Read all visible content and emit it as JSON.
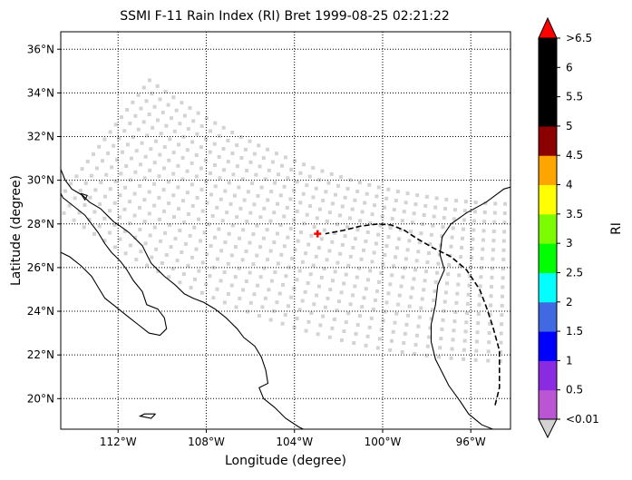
{
  "chart_data": {
    "type": "map-scatter",
    "title": "SSMI F-11 Rain Index (RI) Bret 1999-08-25 02:21:22",
    "xlabel": "Longitude (degree)",
    "ylabel": "Latitude (degree)",
    "xlim": [
      -114.6,
      -94.2
    ],
    "ylim": [
      18.6,
      36.8
    ],
    "xticks": [
      {
        "value": -112,
        "label": "112°W"
      },
      {
        "value": -108,
        "label": "108°W"
      },
      {
        "value": -104,
        "label": "104°W"
      },
      {
        "value": -100,
        "label": "100°W"
      },
      {
        "value": -96,
        "label": "96°W"
      }
    ],
    "yticks": [
      {
        "value": 20,
        "label": "20°N"
      },
      {
        "value": 22,
        "label": "22°N"
      },
      {
        "value": 24,
        "label": "24°N"
      },
      {
        "value": 26,
        "label": "26°N"
      },
      {
        "value": 28,
        "label": "28°N"
      },
      {
        "value": 30,
        "label": "30°N"
      },
      {
        "value": 32,
        "label": "32°N"
      },
      {
        "value": 34,
        "label": "34°N"
      },
      {
        "value": 36,
        "label": "36°N"
      }
    ],
    "grid": true,
    "grid_style": "dotted",
    "swath": {
      "color": "#d3d3d3",
      "value_label": "<0.01",
      "center": [
        -93.6,
        57.1
      ],
      "inner_radius_deg": 28.2,
      "outer_radius_deg": 35.4,
      "angle_start_deg": 233,
      "angle_end_deg": 290,
      "rows": 18,
      "cols": 64
    },
    "track": {
      "color": "#000000",
      "style": "dashed",
      "points": [
        [
          -94.9,
          19.7
        ],
        [
          -94.7,
          20.5
        ],
        [
          -94.7,
          22.2
        ],
        [
          -95.0,
          23.3
        ],
        [
          -95.3,
          24.2
        ],
        [
          -95.6,
          25.0
        ],
        [
          -96.2,
          25.9
        ],
        [
          -96.9,
          26.5
        ],
        [
          -97.7,
          26.9
        ],
        [
          -98.4,
          27.3
        ],
        [
          -99.0,
          27.7
        ],
        [
          -99.6,
          27.95
        ],
        [
          -100.2,
          28.0
        ],
        [
          -101.0,
          27.9
        ],
        [
          -101.8,
          27.7
        ],
        [
          -102.6,
          27.55
        ]
      ]
    },
    "current_position": {
      "lon": -102.95,
      "lat": 27.55,
      "color": "#ff0000"
    },
    "coastlines": {
      "color": "#000000",
      "lines": [
        [
          [
            -114.6,
            30.5
          ],
          [
            -114.4,
            30.0
          ],
          [
            -114.1,
            29.6
          ],
          [
            -113.6,
            29.3
          ],
          [
            -113.3,
            29.0
          ],
          [
            -112.8,
            28.7
          ],
          [
            -112.5,
            28.4
          ],
          [
            -112.2,
            28.1
          ],
          [
            -111.9,
            27.9
          ],
          [
            -111.5,
            27.6
          ],
          [
            -111.2,
            27.3
          ],
          [
            -110.9,
            27.0
          ],
          [
            -110.7,
            26.6
          ],
          [
            -110.5,
            26.2
          ],
          [
            -110.2,
            25.9
          ],
          [
            -109.9,
            25.6
          ],
          [
            -109.4,
            25.2
          ],
          [
            -109.0,
            24.8
          ],
          [
            -108.6,
            24.6
          ],
          [
            -108.1,
            24.4
          ],
          [
            -107.6,
            24.1
          ],
          [
            -107.1,
            23.7
          ],
          [
            -106.6,
            23.2
          ],
          [
            -106.3,
            22.8
          ],
          [
            -105.8,
            22.4
          ],
          [
            -105.5,
            21.9
          ],
          [
            -105.3,
            21.3
          ],
          [
            -105.2,
            20.7
          ],
          [
            -105.6,
            20.5
          ],
          [
            -105.4,
            20.0
          ],
          [
            -104.9,
            19.6
          ],
          [
            -104.4,
            19.1
          ],
          [
            -103.8,
            18.7
          ],
          [
            -103.6,
            18.6
          ]
        ],
        [
          [
            -114.6,
            26.7
          ],
          [
            -114.2,
            26.5
          ],
          [
            -113.7,
            26.1
          ],
          [
            -113.2,
            25.6
          ],
          [
            -112.9,
            25.1
          ],
          [
            -112.6,
            24.6
          ],
          [
            -112.1,
            24.2
          ],
          [
            -111.6,
            23.8
          ],
          [
            -111.1,
            23.4
          ],
          [
            -110.6,
            23.0
          ],
          [
            -110.1,
            22.9
          ],
          [
            -109.8,
            23.2
          ],
          [
            -109.9,
            23.7
          ],
          [
            -110.2,
            24.1
          ],
          [
            -110.7,
            24.3
          ],
          [
            -110.9,
            24.9
          ],
          [
            -111.3,
            25.4
          ],
          [
            -111.6,
            25.9
          ],
          [
            -111.9,
            26.3
          ],
          [
            -112.3,
            26.7
          ],
          [
            -112.6,
            27.1
          ],
          [
            -112.9,
            27.6
          ],
          [
            -113.2,
            28.0
          ],
          [
            -113.5,
            28.4
          ],
          [
            -114.0,
            28.8
          ],
          [
            -114.5,
            29.2
          ],
          [
            -114.6,
            29.4
          ]
        ],
        [
          [
            -93.8,
            29.8
          ],
          [
            -94.5,
            29.6
          ],
          [
            -95.3,
            29.0
          ],
          [
            -96.2,
            28.5
          ],
          [
            -96.9,
            28.0
          ],
          [
            -97.3,
            27.4
          ],
          [
            -97.4,
            26.6
          ],
          [
            -97.2,
            25.9
          ],
          [
            -97.5,
            25.2
          ],
          [
            -97.6,
            24.3
          ],
          [
            -97.8,
            23.4
          ],
          [
            -97.8,
            22.6
          ],
          [
            -97.6,
            21.8
          ],
          [
            -97.3,
            21.2
          ],
          [
            -97.0,
            20.6
          ],
          [
            -96.5,
            19.9
          ],
          [
            -96.1,
            19.3
          ],
          [
            -95.5,
            18.8
          ],
          [
            -95.0,
            18.6
          ]
        ],
        [
          [
            -110.3,
            19.3
          ],
          [
            -110.8,
            19.3
          ],
          [
            -111.0,
            19.2
          ],
          [
            -110.5,
            19.1
          ],
          [
            -110.3,
            19.3
          ]
        ],
        [
          [
            -113.7,
            29.4
          ],
          [
            -113.4,
            29.3
          ],
          [
            -113.5,
            29.1
          ],
          [
            -113.7,
            29.4
          ]
        ]
      ]
    },
    "colorbar": {
      "label": "RI",
      "ticks": [
        "<0.01",
        "0.5",
        "1",
        "1.5",
        "2",
        "2.5",
        "3",
        "3.5",
        "4",
        "4.5",
        "5",
        "5.5",
        "6",
        ">6.5"
      ],
      "under_color": "#d3d3d3",
      "over_color": "#ff0000",
      "bands": [
        {
          "from": "<0.01",
          "to": "0.5",
          "color": "#ba55d3"
        },
        {
          "from": "0.5",
          "to": "1",
          "color": "#8a2be2"
        },
        {
          "from": "1",
          "to": "1.5",
          "color": "#0000ff"
        },
        {
          "from": "1.5",
          "to": "2",
          "color": "#4169e1"
        },
        {
          "from": "2",
          "to": "2.5",
          "color": "#00ffff"
        },
        {
          "from": "2.5",
          "to": "3",
          "color": "#00ff00"
        },
        {
          "from": "3",
          "to": "3.5",
          "color": "#7cfc00"
        },
        {
          "from": "3.5",
          "to": "4",
          "color": "#ffff00"
        },
        {
          "from": "4",
          "to": "4.5",
          "color": "#ffa500"
        },
        {
          "from": "4.5",
          "to": "5",
          "color": "#8b0000"
        },
        {
          "from": "5",
          "to": "5.5",
          "color": "#000000"
        },
        {
          "from": "5.5",
          "to": "6",
          "color": "#000000"
        },
        {
          "from": "6",
          "to": ">6.5",
          "color": "#000000"
        }
      ]
    }
  }
}
